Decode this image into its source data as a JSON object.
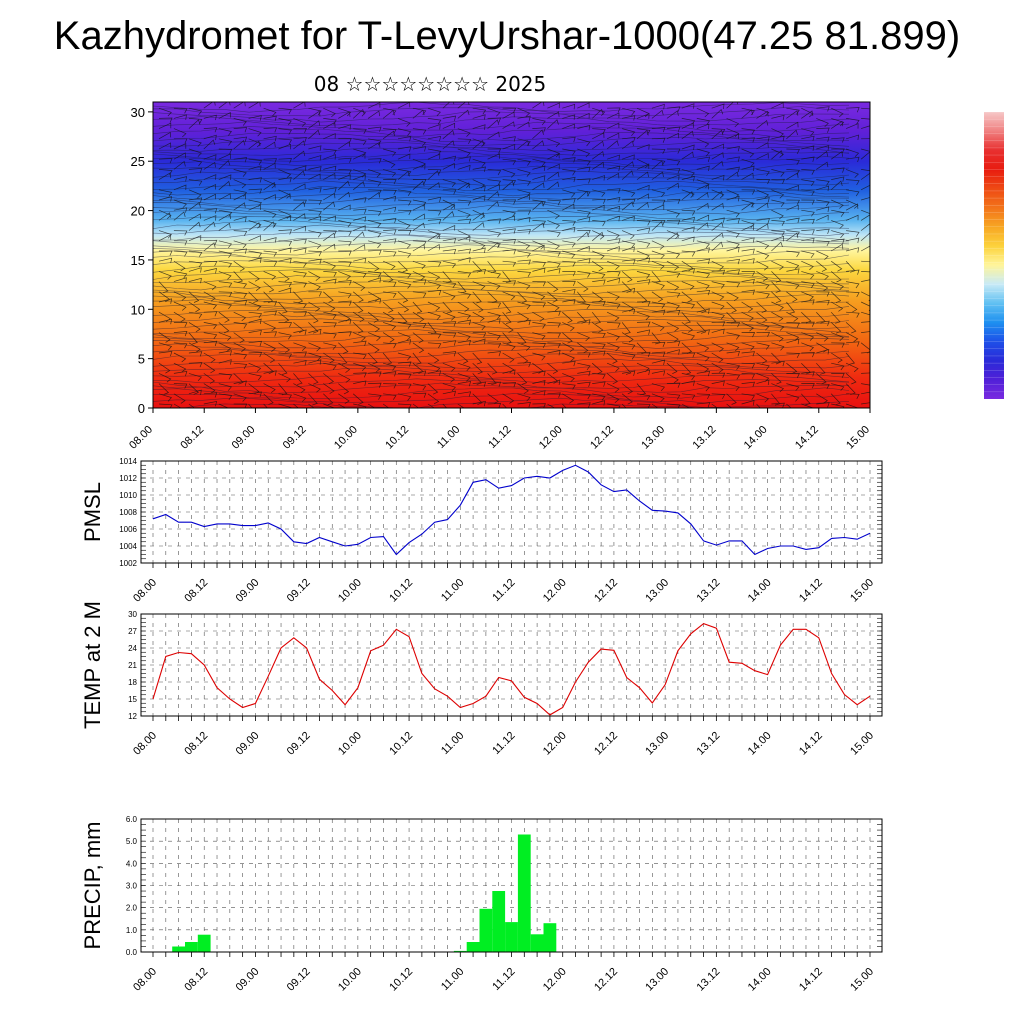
{
  "figure": {
    "title": "Kazhydromet for T-LevyUrshar-1000(47.25 81.899)",
    "subtitle": "08 ☆☆☆☆☆☆☆☆ 2025"
  },
  "time_labels": [
    "08.00",
    "08.12",
    "09.00",
    "09.12",
    "10.00",
    "10.12",
    "11.00",
    "11.12",
    "12.00",
    "12.12",
    "13.00",
    "13.12",
    "14.00",
    "14.12",
    "15.00"
  ],
  "chart_data": [
    {
      "type": "heatmap",
      "name": "cross-section",
      "x_ticks": [
        "08.00",
        "08.12",
        "09.00",
        "09.12",
        "10.00",
        "10.12",
        "11.00",
        "11.12",
        "12.00",
        "12.12",
        "13.00",
        "13.12",
        "14.00",
        "14.12",
        "15.00"
      ],
      "y_ticks": [
        "0",
        "5",
        "10",
        "15",
        "20",
        "25",
        "30"
      ],
      "ylim": [
        0,
        31
      ],
      "layers": [
        {
          "y": 0,
          "color": "#e81010"
        },
        {
          "y": 3,
          "color": "#f02a10"
        },
        {
          "y": 7,
          "color": "#f26a12"
        },
        {
          "y": 11,
          "color": "#f6a020"
        },
        {
          "y": 14,
          "color": "#fcd840"
        },
        {
          "y": 16,
          "color": "#fff6a0"
        },
        {
          "y": 17.5,
          "color": "#bfe6f6"
        },
        {
          "y": 19,
          "color": "#5ab4f0"
        },
        {
          "y": 22,
          "color": "#2060e0"
        },
        {
          "y": 25,
          "color": "#2a2ad8"
        },
        {
          "y": 28,
          "color": "#6020d8"
        },
        {
          "y": 31,
          "color": "#7a2ae0"
        }
      ],
      "colorbar": [
        "#7a2ae0",
        "#5020d8",
        "#2a2ad8",
        "#1e50e8",
        "#1e90f0",
        "#60c0f2",
        "#c8eaf6",
        "#fff59a",
        "#fcd23c",
        "#f7a623",
        "#f2731a",
        "#ee4a14",
        "#e81c10",
        "#e83030",
        "#f08080",
        "#f6c8c8"
      ]
    },
    {
      "type": "line",
      "name": "PMSL",
      "ylabel": "PMSL",
      "y_ticks": [
        "1002",
        "1004",
        "1006",
        "1008",
        "1010",
        "1012",
        "1014"
      ],
      "ylim": [
        1002,
        1014
      ],
      "x_ticks": [
        "08.00",
        "08.12",
        "09.00",
        "09.12",
        "10.00",
        "10.12",
        "11.00",
        "11.12",
        "12.00",
        "12.12",
        "13.00",
        "13.12",
        "14.00",
        "14.12",
        "15.00"
      ],
      "color": "#0000cc",
      "values": [
        1007.2,
        1007.7,
        1006.8,
        1006.8,
        1006.3,
        1006.6,
        1006.6,
        1006.4,
        1006.4,
        1006.7,
        1006.0,
        1004.5,
        1004.3,
        1005.0,
        1004.5,
        1004.0,
        1004.2,
        1005.0,
        1005.1,
        1003.0,
        1004.4,
        1005.4,
        1006.8,
        1007.1,
        1008.8,
        1011.5,
        1011.8,
        1010.8,
        1011.1,
        1012.0,
        1012.2,
        1012.0,
        1012.9,
        1013.5,
        1012.7,
        1011.2,
        1010.4,
        1010.6,
        1009.3,
        1008.2,
        1008.1,
        1007.9,
        1006.6,
        1004.6,
        1004.1,
        1004.6,
        1004.6,
        1003.0,
        1003.7,
        1004.0,
        1004.0,
        1003.6,
        1003.8,
        1004.9,
        1005.0,
        1004.8,
        1005.5
      ]
    },
    {
      "type": "line",
      "name": "TEMP",
      "ylabel": "TEMP at 2 M",
      "y_ticks": [
        "12",
        "15",
        "18",
        "21",
        "24",
        "27",
        "30"
      ],
      "ylim": [
        12,
        30
      ],
      "x_ticks": [
        "08.00",
        "08.12",
        "09.00",
        "09.12",
        "10.00",
        "10.12",
        "11.00",
        "11.12",
        "12.00",
        "12.12",
        "13.00",
        "13.12",
        "14.00",
        "14.12",
        "15.00"
      ],
      "color": "#dd0000",
      "values": [
        15.0,
        22.5,
        23.2,
        23.0,
        21.0,
        17.0,
        15.0,
        13.5,
        14.2,
        19.0,
        24.0,
        25.8,
        24.0,
        18.5,
        16.5,
        14.0,
        17.0,
        23.5,
        24.5,
        27.3,
        26.0,
        19.5,
        16.8,
        15.5,
        13.5,
        14.2,
        15.5,
        18.8,
        18.2,
        15.3,
        14.2,
        12.2,
        13.5,
        18.0,
        21.5,
        23.8,
        23.6,
        18.8,
        17.0,
        14.3,
        17.5,
        23.5,
        26.5,
        28.3,
        27.5,
        21.5,
        21.3,
        20.0,
        19.3,
        24.5,
        27.3,
        27.3,
        25.8,
        19.5,
        15.8,
        14.0,
        15.5
      ]
    },
    {
      "type": "bar",
      "name": "PRECIP",
      "ylabel": "PRECIP, mm",
      "y_ticks": [
        "0.0",
        "1.0",
        "2.0",
        "3.0",
        "4.0",
        "5.0",
        "6.0"
      ],
      "ylim": [
        0,
        6
      ],
      "x_ticks": [
        "08.00",
        "08.12",
        "09.00",
        "09.12",
        "10.00",
        "10.12",
        "11.00",
        "11.12",
        "12.00",
        "12.12",
        "13.00",
        "13.12",
        "14.00",
        "14.12",
        "15.00"
      ],
      "color": "#00ee22",
      "values": [
        0,
        0,
        0.25,
        0.45,
        0.78,
        0,
        0,
        0,
        0,
        0,
        0,
        0,
        0,
        0,
        0,
        0,
        0,
        0,
        0,
        0,
        0,
        0,
        0,
        0,
        0.05,
        0.45,
        1.95,
        2.75,
        1.35,
        5.3,
        0.8,
        1.3,
        0,
        0,
        0,
        0,
        0,
        0,
        0,
        0,
        0,
        0,
        0,
        0,
        0,
        0,
        0,
        0,
        0,
        0,
        0,
        0,
        0,
        0,
        0,
        0,
        0
      ]
    }
  ]
}
